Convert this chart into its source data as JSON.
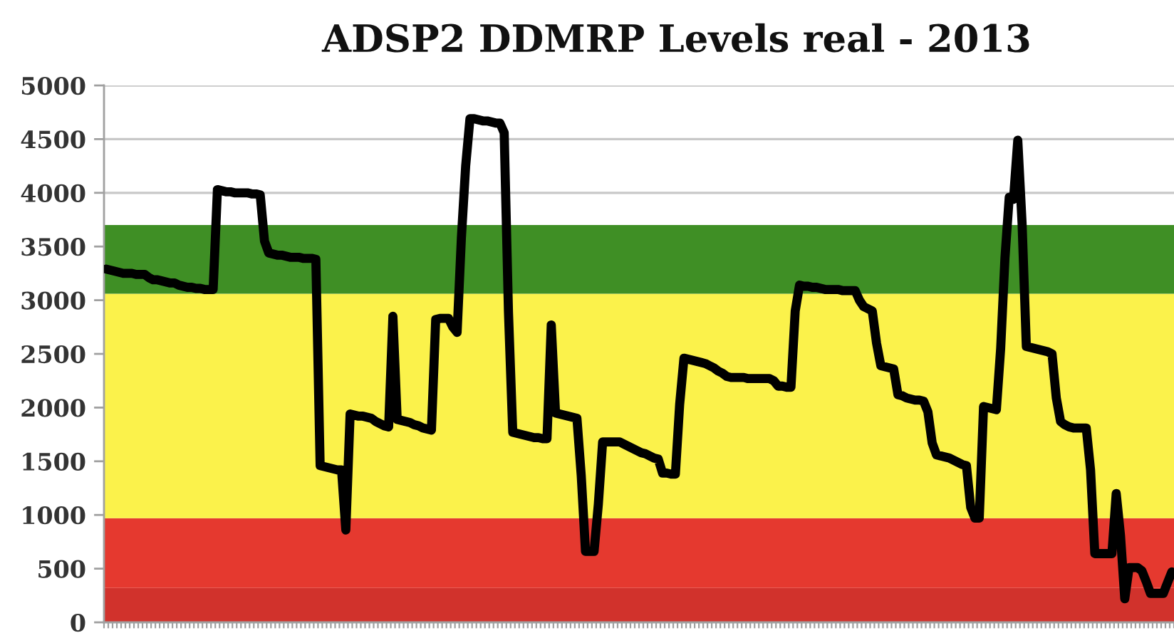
{
  "chart_data": {
    "type": "line",
    "title": "ADSP2 DDMRP Levels real - 2013",
    "categories": [
      null,
      null,
      null,
      null,
      null,
      null,
      null,
      null,
      null,
      null,
      null,
      null,
      null,
      null,
      null,
      null,
      null,
      null,
      null,
      null,
      null,
      null,
      null,
      null,
      null,
      null,
      null,
      null,
      null,
      null,
      null,
      null,
      null,
      null,
      null,
      null,
      null,
      null,
      null,
      null,
      null,
      null,
      null,
      null,
      null,
      null,
      null,
      null,
      null,
      null,
      null,
      null,
      null,
      null,
      null,
      null,
      null,
      null,
      null,
      null,
      null,
      null,
      null,
      null,
      null,
      null,
      null,
      null,
      null,
      null,
      null,
      null,
      null,
      null,
      null,
      null,
      null,
      null,
      null,
      null,
      null,
      null,
      null,
      null,
      null,
      null,
      null,
      null,
      null,
      null,
      null,
      null,
      null,
      null,
      null,
      null,
      null,
      null,
      null,
      null,
      null,
      null,
      null,
      null,
      null,
      null,
      null,
      null,
      null,
      null,
      null,
      null,
      null,
      null,
      null,
      null,
      null,
      null,
      null,
      null,
      null,
      null,
      null,
      null,
      null,
      null,
      null,
      null,
      null,
      null,
      null,
      null,
      null,
      null,
      null,
      null,
      null,
      null,
      null,
      null,
      null,
      null,
      null,
      null,
      null,
      null,
      null,
      null,
      null,
      null,
      null,
      null,
      null,
      null,
      null,
      null,
      null,
      null,
      null,
      null,
      null,
      null,
      null,
      null,
      null,
      null,
      null,
      null,
      null,
      null,
      null,
      null,
      null,
      null,
      null,
      null,
      null,
      null,
      null,
      null,
      null,
      null,
      null,
      null,
      null,
      null,
      null,
      null,
      null,
      null,
      null,
      null,
      null,
      null,
      null,
      null,
      null,
      null,
      null,
      null,
      null,
      null,
      null,
      null,
      null,
      null,
      null,
      null,
      null,
      null,
      null,
      null,
      null,
      null,
      null,
      null,
      null,
      null,
      null,
      null,
      null,
      null,
      null,
      null,
      null,
      null,
      null,
      null,
      null,
      null,
      null,
      null,
      null,
      null,
      null,
      null,
      null,
      null,
      null,
      null,
      null,
      null,
      null,
      null,
      null,
      null,
      null,
      null,
      null,
      null
    ],
    "series": [
      {
        "color": "#000000",
        "values": [
          3290,
          3280,
          3270,
          3260,
          3250,
          3250,
          3250,
          3240,
          3240,
          3240,
          3210,
          3190,
          3190,
          3180,
          3170,
          3160,
          3160,
          3140,
          3130,
          3120,
          3120,
          3110,
          3110,
          3100,
          3100,
          3100,
          4030,
          4020,
          4010,
          4010,
          4000,
          4000,
          4000,
          4000,
          3990,
          3990,
          3980,
          3550,
          3440,
          3430,
          3420,
          3420,
          3410,
          3400,
          3400,
          3400,
          3390,
          3390,
          3390,
          3380,
          1460,
          1450,
          1440,
          1430,
          1420,
          1420,
          860,
          1940,
          1930,
          1920,
          1920,
          1910,
          1900,
          1870,
          1850,
          1830,
          1820,
          2850,
          1890,
          1880,
          1870,
          1860,
          1840,
          1830,
          1810,
          1800,
          1790,
          2820,
          2830,
          2830,
          2830,
          2750,
          2700,
          3580,
          4250,
          4690,
          4690,
          4680,
          4670,
          4670,
          4660,
          4650,
          4650,
          4560,
          2890,
          1770,
          1760,
          1750,
          1740,
          1730,
          1720,
          1720,
          1710,
          1710,
          2770,
          1950,
          1940,
          1930,
          1920,
          1910,
          1900,
          1370,
          660,
          660,
          660,
          1100,
          1680,
          1680,
          1680,
          1680,
          1680,
          1660,
          1640,
          1620,
          1600,
          1580,
          1570,
          1550,
          1530,
          1520,
          1390,
          1390,
          1380,
          1380,
          2030,
          2460,
          2450,
          2440,
          2430,
          2420,
          2410,
          2390,
          2370,
          2340,
          2320,
          2290,
          2280,
          2280,
          2280,
          2280,
          2270,
          2270,
          2270,
          2270,
          2270,
          2270,
          2250,
          2200,
          2200,
          2190,
          2190,
          2900,
          3140,
          3130,
          3130,
          3120,
          3120,
          3110,
          3100,
          3100,
          3100,
          3100,
          3090,
          3090,
          3090,
          3090,
          3000,
          2940,
          2920,
          2900,
          2600,
          2390,
          2380,
          2370,
          2360,
          2120,
          2110,
          2090,
          2080,
          2070,
          2070,
          2060,
          1960,
          1670,
          1560,
          1550,
          1540,
          1530,
          1510,
          1490,
          1470,
          1460,
          1070,
          970,
          970,
          2010,
          2000,
          1990,
          1980,
          2550,
          3390,
          3960,
          3940,
          4490,
          3720,
          2570,
          2560,
          2550,
          2540,
          2530,
          2520,
          2500,
          2090,
          1870,
          1840,
          1820,
          1810,
          1810,
          1810,
          1810,
          1420,
          640,
          640,
          640,
          640,
          640,
          1200,
          810,
          220,
          510,
          510,
          510,
          480,
          380,
          270,
          270,
          270,
          270,
          370,
          470
        ]
      }
    ],
    "ylim": [
      0,
      5000
    ],
    "yticks": [
      0,
      500,
      1000,
      1500,
      2000,
      2500,
      3000,
      3500,
      4000,
      4500,
      5000
    ],
    "grid": "y",
    "tick_labels": "y",
    "line_style": "solid",
    "bands": [
      {
        "axis": "y",
        "from": 0,
        "to": 320,
        "color": "#d1322c"
      },
      {
        "axis": "y",
        "from": 320,
        "to": 970,
        "color": "#e5392f"
      },
      {
        "axis": "y",
        "from": 970,
        "to": 3060,
        "color": "#fbf24b"
      },
      {
        "axis": "y",
        "from": 3060,
        "to": 3700,
        "color": "#3f8f25"
      }
    ]
  }
}
